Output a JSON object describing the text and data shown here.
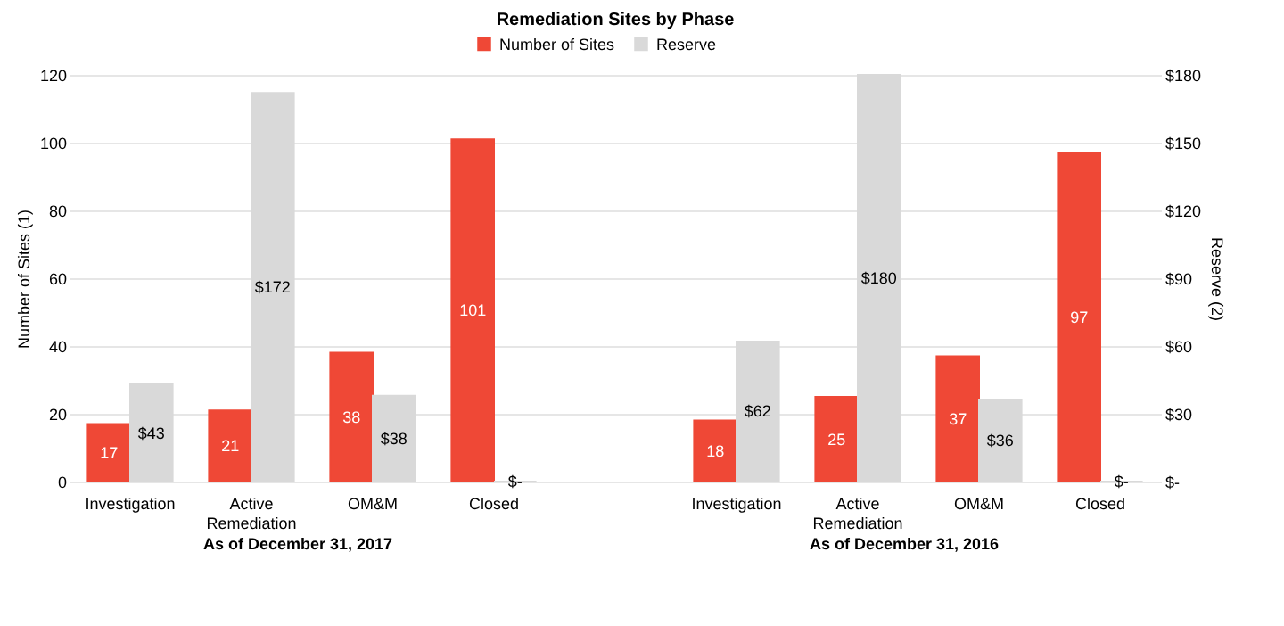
{
  "chart_data": {
    "type": "bar",
    "title": "Remediation Sites by Phase",
    "categories": [
      "Investigation",
      "Active Remediation",
      "OM&M",
      "Closed",
      null,
      "Investigation",
      "Active Remediation",
      "OM&M",
      "Closed"
    ],
    "series": [
      {
        "name": "Number of Sites",
        "color": "#ef4836",
        "values": [
          17,
          21,
          38,
          101,
          null,
          18,
          25,
          37,
          97
        ]
      },
      {
        "name": "Reserve",
        "color": "#d9d9d9",
        "axis": "y2",
        "values": [
          43,
          172,
          38,
          0,
          null,
          62,
          180,
          36,
          0
        ],
        "value_labels": [
          "$43",
          "$172",
          "$38",
          "$-",
          null,
          "$62",
          "$180",
          "$36",
          "$-"
        ]
      }
    ],
    "data_labels": true,
    "ylabel": "Number of Sites (1)",
    "y2label": "Reserve (2)",
    "ylim": [
      0,
      120
    ],
    "yticks": [
      0,
      20,
      40,
      60,
      80,
      100,
      120
    ],
    "y2lim": [
      0,
      180
    ],
    "y2ticks": [
      {
        "value": 0,
        "label": "$-"
      },
      {
        "value": 30,
        "label": "$30"
      },
      {
        "value": 60,
        "label": "$60"
      },
      {
        "value": 90,
        "label": "$90"
      },
      {
        "value": 120,
        "label": "$120"
      },
      {
        "value": 150,
        "label": "$150"
      },
      {
        "value": 180,
        "label": "$180"
      }
    ],
    "grid": true,
    "legend": "top",
    "annotations": [
      "As of December 31, 2017",
      "As of December 31, 2016"
    ]
  }
}
